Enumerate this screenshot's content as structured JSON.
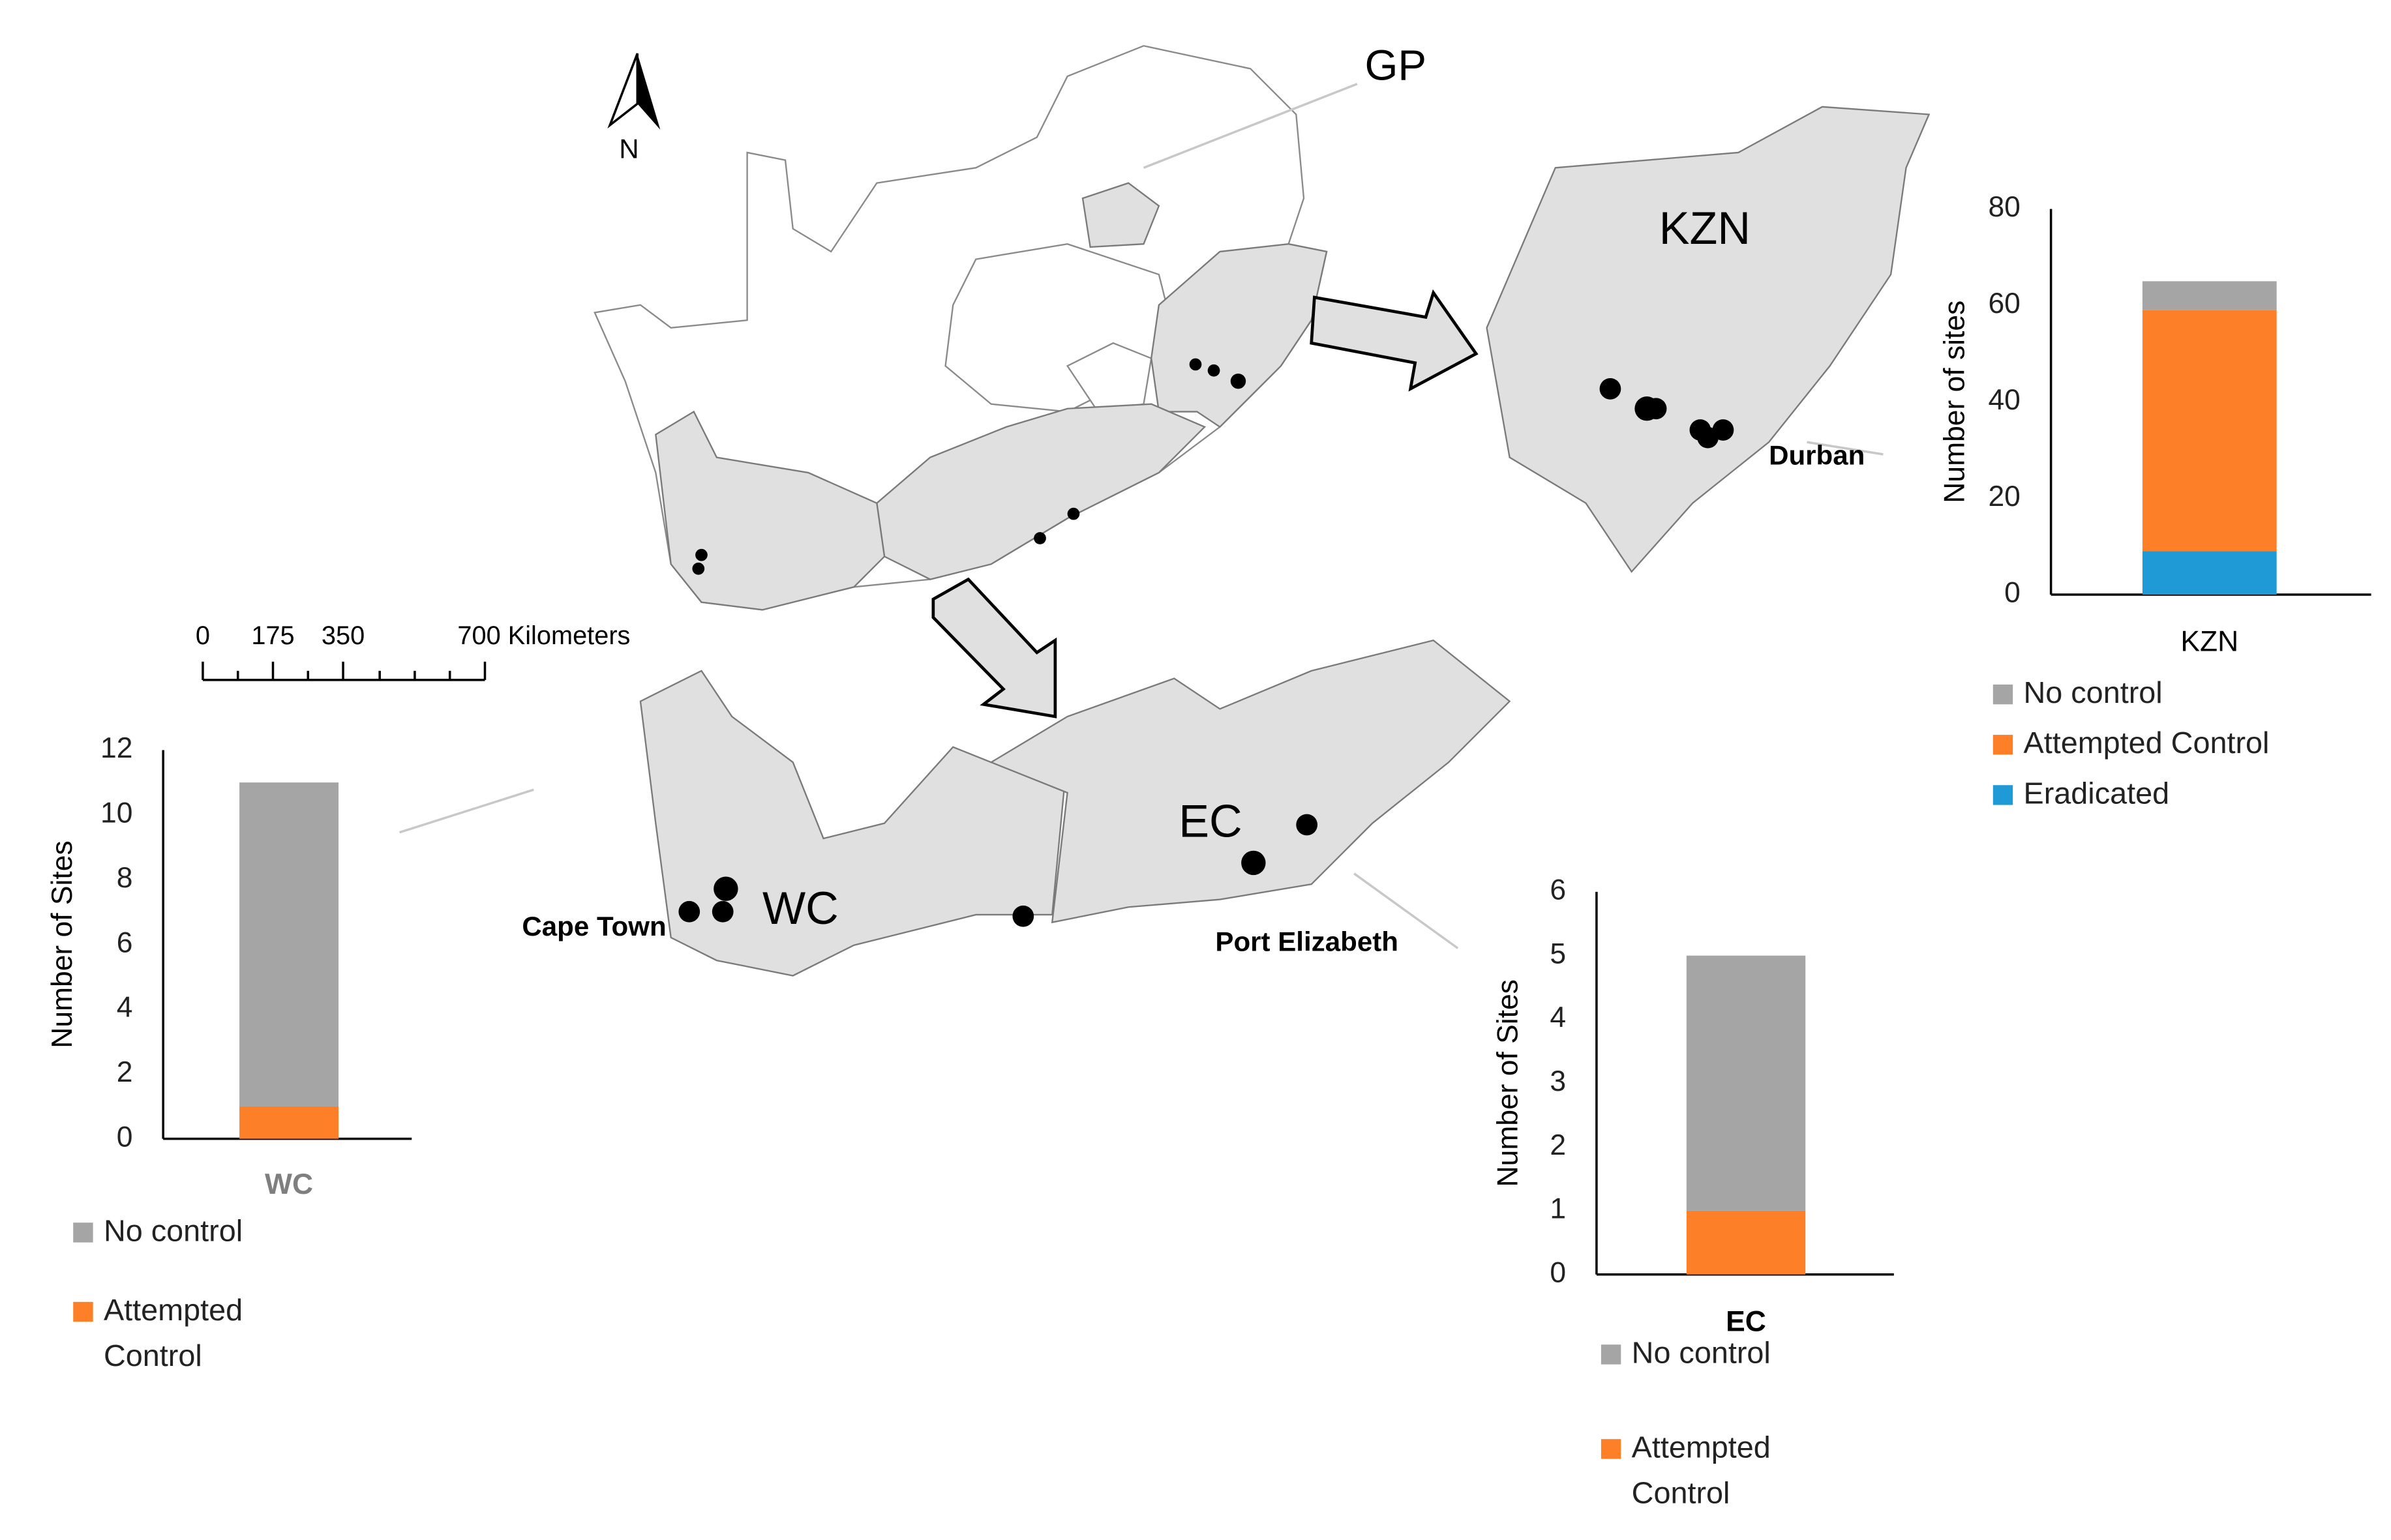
{
  "map": {
    "labels": {
      "gp": "GP",
      "kzn": "KZN",
      "wc": "WC",
      "ec": "EC"
    },
    "north": "N",
    "cities": {
      "cape_town": "Cape Town",
      "durban": "Durban",
      "port_elizabeth": "Port Elizabeth"
    },
    "scale": [
      "0",
      "175",
      "350",
      "700 Kilometers"
    ]
  },
  "chart_data": [
    {
      "type": "bar",
      "stacked": true,
      "y_label": "Number of sites",
      "categories": [
        "KZN"
      ],
      "series": [
        {
          "name": "Eradicated",
          "color": "#1f9ad6",
          "values": [
            9
          ]
        },
        {
          "name": "Attempted Control",
          "color": "#fd7f28",
          "values": [
            50
          ]
        },
        {
          "name": "No control",
          "color": "#a5a5a5",
          "values": [
            6
          ]
        }
      ],
      "ylim": [
        0,
        80
      ],
      "yticks": [
        0,
        20,
        40,
        60,
        80
      ]
    },
    {
      "type": "bar",
      "stacked": true,
      "y_label": "Number of Sites",
      "categories": [
        "WC"
      ],
      "series": [
        {
          "name": "Attempted Control",
          "color": "#fd7f28",
          "values": [
            1
          ]
        },
        {
          "name": "No control",
          "color": "#a5a5a5",
          "values": [
            10
          ]
        }
      ],
      "ylim": [
        0,
        12
      ],
      "yticks": [
        0,
        2,
        4,
        6,
        8,
        10,
        12
      ]
    },
    {
      "type": "bar",
      "stacked": true,
      "y_label": "Number of Sites",
      "categories": [
        "EC"
      ],
      "series": [
        {
          "name": "Attempted Control",
          "color": "#fd7f28",
          "values": [
            1
          ]
        },
        {
          "name": "No control",
          "color": "#a5a5a5",
          "values": [
            4
          ]
        }
      ],
      "ylim": [
        0,
        6
      ],
      "yticks": [
        0,
        1,
        2,
        3,
        4,
        5,
        6
      ]
    }
  ]
}
